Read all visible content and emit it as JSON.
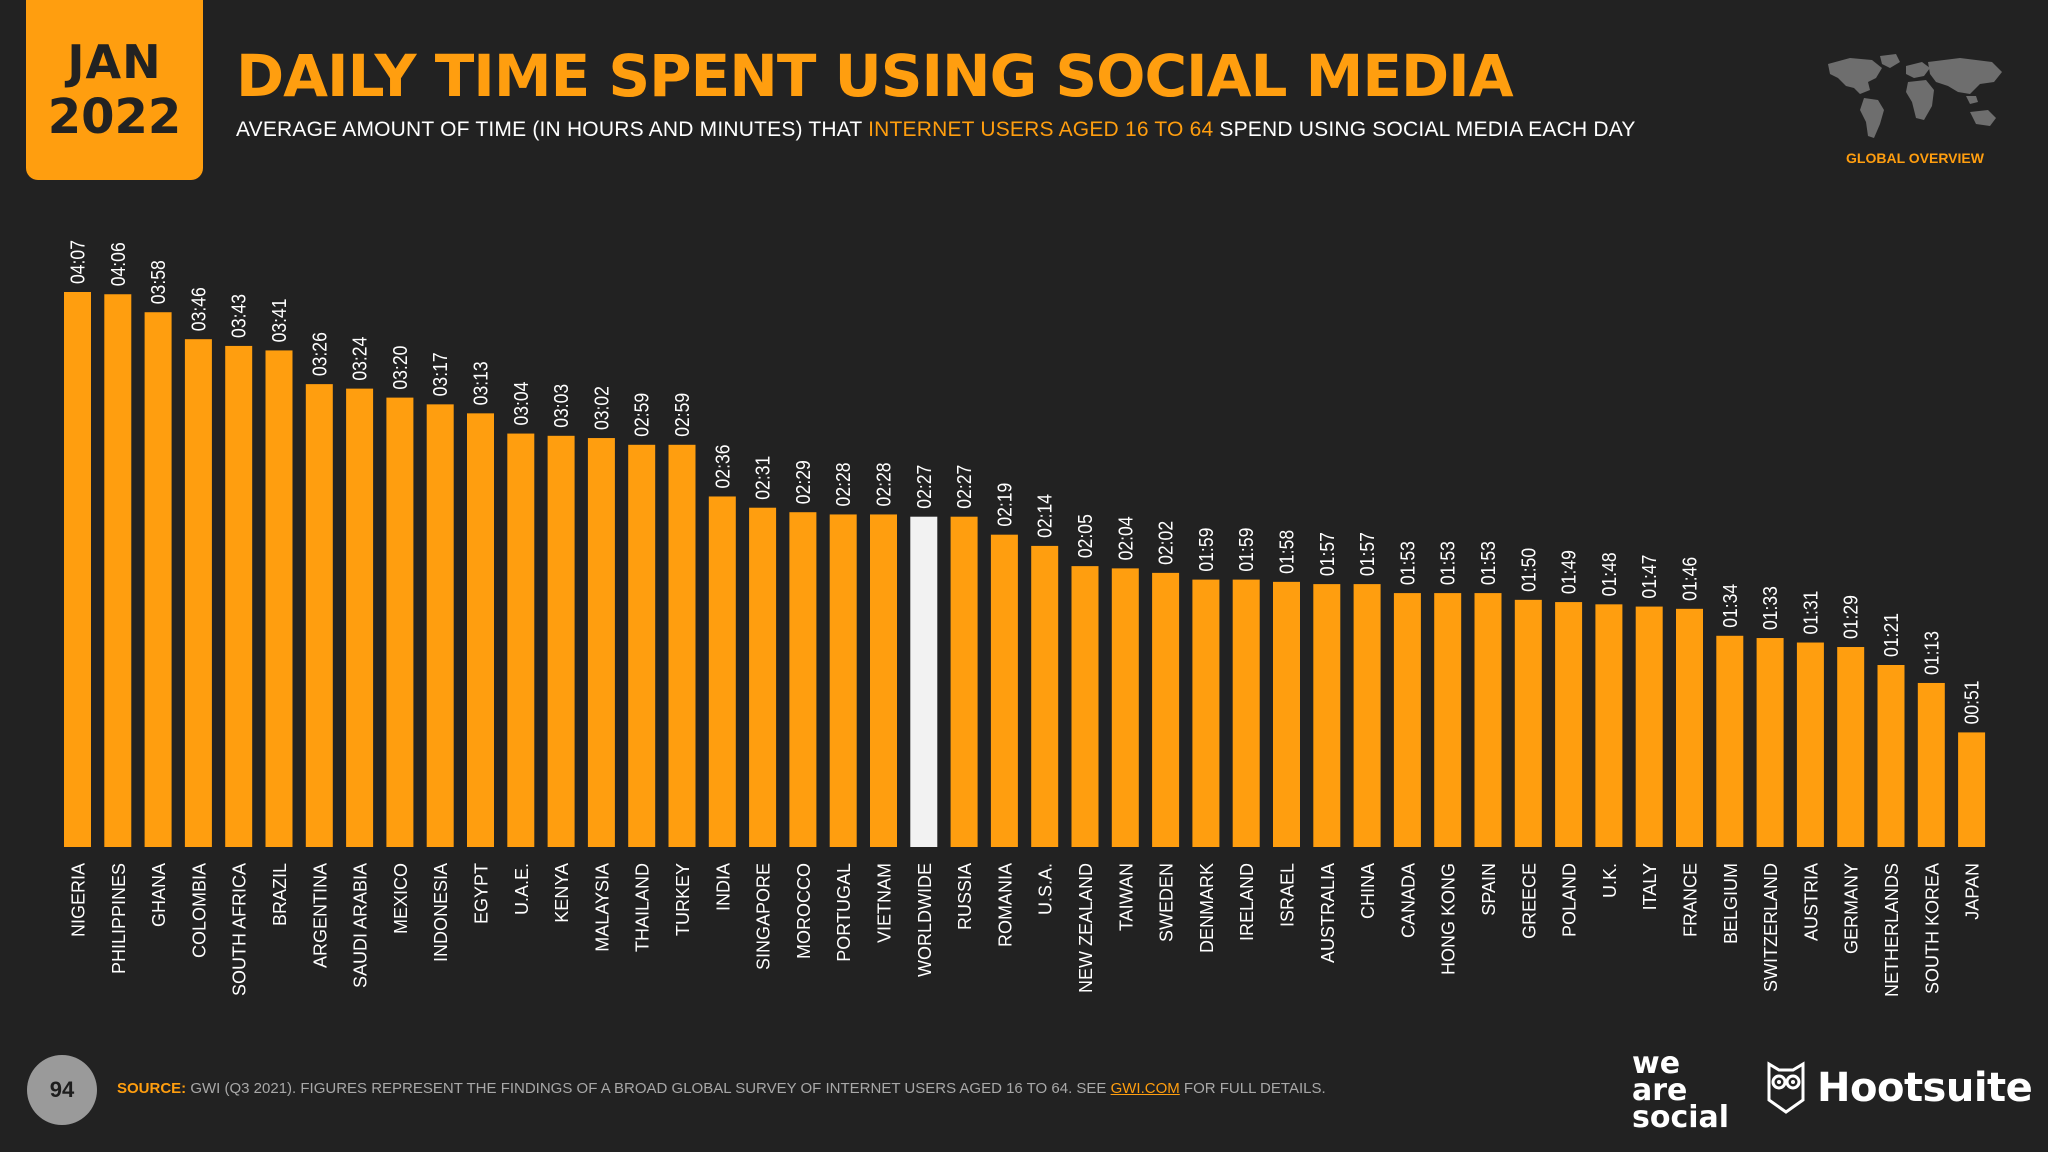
{
  "header": {
    "month": "JAN",
    "year": "2022",
    "title": "DAILY TIME SPENT USING SOCIAL MEDIA",
    "subtitle_pre": "AVERAGE AMOUNT OF TIME (IN HOURS AND MINUTES) THAT ",
    "subtitle_highlight": "INTERNET USERS AGED 16 TO 64",
    "subtitle_post": " SPEND USING SOCIAL MEDIA EACH DAY",
    "global_label": "GLOBAL OVERVIEW"
  },
  "footer": {
    "page_number": "94",
    "source_label": "SOURCE:",
    "source_text": " GWI (Q3 2021). FIGURES REPRESENT THE FINDINGS OF A BROAD GLOBAL SURVEY OF INTERNET USERS AGED 16 TO 64. SEE ",
    "source_link": "GWI.COM",
    "source_tail": " FOR FULL DETAILS.",
    "logo_we": "we",
    "logo_are": "are",
    "logo_social": "social",
    "logo_hootsuite": "Hootsuite"
  },
  "colors": {
    "background": "#222222",
    "bar": "#FF9E0F",
    "highlight_bar": "#F2F2F2",
    "accent": "#FF9E0F"
  },
  "chart_data": {
    "type": "bar",
    "categories": [
      "NIGERIA",
      "PHILIPPINES",
      "GHANA",
      "COLOMBIA",
      "SOUTH AFRICA",
      "BRAZIL",
      "ARGENTINA",
      "SAUDI ARABIA",
      "MEXICO",
      "INDONESIA",
      "EGYPT",
      "U.A.E.",
      "KENYA",
      "MALAYSIA",
      "THAILAND",
      "TURKEY",
      "INDIA",
      "SINGAPORE",
      "MOROCCO",
      "PORTUGAL",
      "VIETNAM",
      "WORLDWIDE",
      "RUSSIA",
      "ROMANIA",
      "U.S.A.",
      "NEW ZEALAND",
      "TAIWAN",
      "SWEDEN",
      "DENMARK",
      "IRELAND",
      "ISRAEL",
      "AUSTRALIA",
      "CHINA",
      "CANADA",
      "HONG KONG",
      "SPAIN",
      "GREECE",
      "POLAND",
      "U.K.",
      "ITALY",
      "FRANCE",
      "BELGIUM",
      "SWITZERLAND",
      "AUSTRIA",
      "GERMANY",
      "NETHERLANDS",
      "SOUTH KOREA",
      "JAPAN"
    ],
    "labels": [
      "04:07",
      "04:06",
      "03:58",
      "03:46",
      "03:43",
      "03:41",
      "03:26",
      "03:24",
      "03:20",
      "03:17",
      "03:13",
      "03:04",
      "03:03",
      "03:02",
      "02:59",
      "02:59",
      "02:36",
      "02:31",
      "02:29",
      "02:28",
      "02:28",
      "02:27",
      "02:27",
      "02:19",
      "02:14",
      "02:05",
      "02:04",
      "02:02",
      "01:59",
      "01:59",
      "01:58",
      "01:57",
      "01:57",
      "01:53",
      "01:53",
      "01:53",
      "01:50",
      "01:49",
      "01:48",
      "01:47",
      "01:46",
      "01:34",
      "01:33",
      "01:31",
      "01:29",
      "01:21",
      "01:13",
      "00:51"
    ],
    "values": [
      247,
      246,
      238,
      226,
      223,
      221,
      206,
      204,
      200,
      197,
      193,
      184,
      183,
      182,
      179,
      179,
      156,
      151,
      149,
      148,
      148,
      147,
      147,
      139,
      134,
      125,
      124,
      122,
      119,
      119,
      118,
      117,
      117,
      113,
      113,
      113,
      110,
      109,
      108,
      107,
      106,
      94,
      93,
      91,
      89,
      81,
      73,
      51
    ],
    "unit": "minutes",
    "highlight": "WORLDWIDE",
    "ylim": [
      0,
      247
    ],
    "grid": false,
    "legend": "none"
  }
}
